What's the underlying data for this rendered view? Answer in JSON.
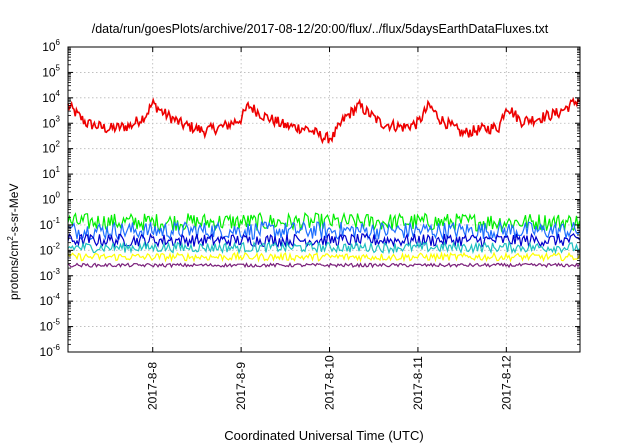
{
  "chart_data": {
    "type": "line",
    "title": "/data/run/goesPlots/archive/2017-08-12/20:00/flux/../flux/5daysEarthDataFluxes.txt",
    "xlabel": "Coordinated Universal Time (UTC)",
    "ylabel": "protons/cm2-s-sr-MeV",
    "ylabel_base": "protons/cm",
    "ylabel_sup": "2",
    "ylabel_rest": "-s-sr-MeV",
    "yscale": "log",
    "ylim": [
      1e-06,
      1000000.0
    ],
    "y_ticks": [
      {
        "base": "10",
        "exp": "-6"
      },
      {
        "base": "10",
        "exp": "-5"
      },
      {
        "base": "10",
        "exp": "-4"
      },
      {
        "base": "10",
        "exp": "-3"
      },
      {
        "base": "10",
        "exp": "-2"
      },
      {
        "base": "10",
        "exp": "-1"
      },
      {
        "base": "10",
        "exp": "0"
      },
      {
        "base": "10",
        "exp": "1"
      },
      {
        "base": "10",
        "exp": "2"
      },
      {
        "base": "10",
        "exp": "3"
      },
      {
        "base": "10",
        "exp": "4"
      },
      {
        "base": "10",
        "exp": "5"
      },
      {
        "base": "10",
        "exp": "6"
      }
    ],
    "xlim": [
      "2017-08-07 01:00",
      "2017-08-12 20:00"
    ],
    "x_tick_labels": [
      "2017-8-8",
      "2017-8-9",
      "2017-8-10",
      "2017-8-11",
      "2017-8-12"
    ],
    "x_tick_dates": [
      "2017-08-08",
      "2017-08-09",
      "2017-08-10",
      "2017-08-11",
      "2017-08-12"
    ],
    "grid": true,
    "series": [
      {
        "color": "#ee0000",
        "x": [
          "2017-08-07 01:00",
          "2017-08-07 06:00",
          "2017-08-07 12:00",
          "2017-08-07 18:00",
          "2017-08-07 22:00",
          "2017-08-08 00:00",
          "2017-08-08 03:00",
          "2017-08-08 08:00",
          "2017-08-08 14:00",
          "2017-08-08 20:00",
          "2017-08-09 00:00",
          "2017-08-09 02:00",
          "2017-08-09 06:00",
          "2017-08-09 12:00",
          "2017-08-09 18:00",
          "2017-08-09 23:00",
          "2017-08-10 01:00",
          "2017-08-10 04:00",
          "2017-08-10 08:00",
          "2017-08-10 14:00",
          "2017-08-10 20:00",
          "2017-08-11 00:00",
          "2017-08-11 03:00",
          "2017-08-11 06:00",
          "2017-08-11 12:00",
          "2017-08-11 18:00",
          "2017-08-11 22:00",
          "2017-08-12 00:00",
          "2017-08-12 04:00",
          "2017-08-12 08:00",
          "2017-08-12 14:00",
          "2017-08-12 20:00"
        ],
        "y": [
          5000,
          1000,
          600,
          800,
          2000,
          6000,
          2500,
          900,
          500,
          800,
          1500,
          5000,
          2000,
          800,
          600,
          250,
          300,
          1500,
          5000,
          1000,
          700,
          1000,
          5000,
          1500,
          400,
          600,
          700,
          5000,
          1200,
          1500,
          2500,
          9000
        ]
      },
      {
        "color": "#00ee00",
        "level": 0.13,
        "spread": 0.35
      },
      {
        "color": "#1e6fff",
        "level": 0.06,
        "spread": 0.35
      },
      {
        "color": "#0000cc",
        "level": 0.025,
        "spread": 0.25
      },
      {
        "color": "#20c0c0",
        "level": 0.013,
        "spread": 0.2
      },
      {
        "color": "#ffff00",
        "level": 0.0055,
        "spread": 0.15
      },
      {
        "color": "#7a1f7a",
        "level": 0.0026,
        "spread": 0.07
      }
    ]
  }
}
